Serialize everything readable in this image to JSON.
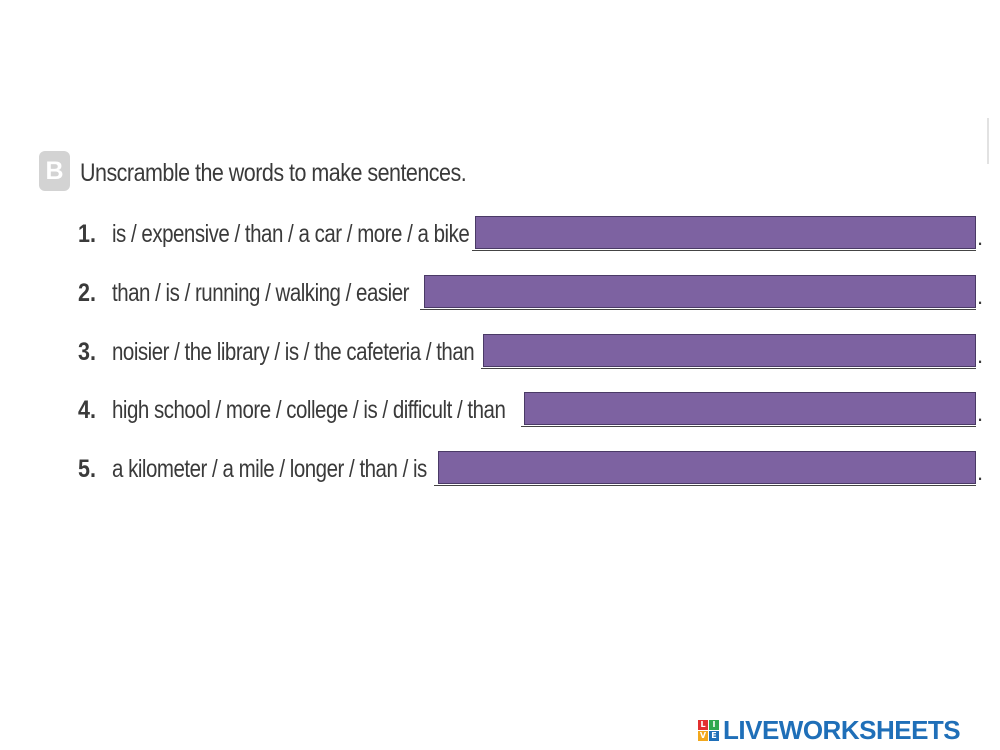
{
  "section": {
    "badge": "B",
    "instruction": "Unscramble the words to make sentences."
  },
  "items": [
    {
      "number": "1.",
      "text": "is / expensive / than / a car / more / a bike",
      "answer": "",
      "period": "."
    },
    {
      "number": "2.",
      "text": "than / is / running / walking / easier",
      "answer": "",
      "period": "."
    },
    {
      "number": "3.",
      "text": "noisier / the library / is / the cafeteria / than",
      "answer": "",
      "period": "."
    },
    {
      "number": "4.",
      "text": "high school / more / college / is / difficult / than",
      "answer": "",
      "period": "."
    },
    {
      "number": "5.",
      "text": "a kilometer / a mile / longer / than / is",
      "answer": "",
      "period": "."
    }
  ],
  "brand": {
    "icon_letters": [
      "L",
      "I",
      "V",
      "E"
    ],
    "text": "LIVEWORKSHEETS"
  },
  "colors": {
    "answer_box": "#7d62a1",
    "brand": "#1f6fb8",
    "badge": "#d3d3d3"
  }
}
